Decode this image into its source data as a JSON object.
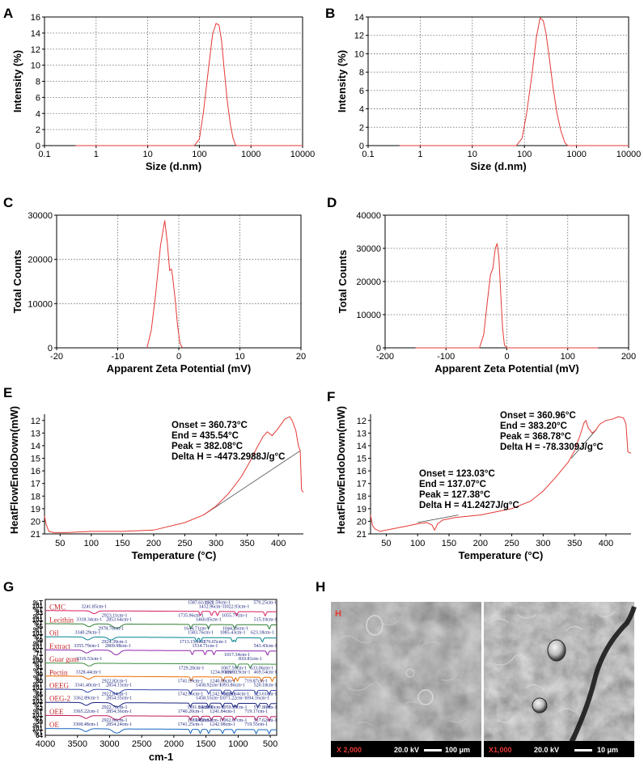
{
  "panel_labels": [
    "A",
    "B",
    "C",
    "D",
    "E",
    "F",
    "G",
    "H"
  ],
  "chart_data": [
    {
      "id": "A",
      "type": "line",
      "xlabel": "Size (d.nm)",
      "ylabel": "Intensity (%)",
      "xscale": "log",
      "xlim": [
        0.1,
        10000
      ],
      "ylim": [
        0,
        16
      ],
      "xticks": [
        "0.1",
        "1",
        "10",
        "100",
        "1000",
        "10000"
      ],
      "yticks": [
        "0",
        "2",
        "4",
        "6",
        "8",
        "10",
        "12",
        "14",
        "16"
      ],
      "grid": true,
      "series": [
        {
          "color": "#e53935",
          "x": [
            0.4,
            80,
            100,
            120,
            150,
            180,
            210,
            240,
            270,
            300,
            350,
            400,
            450,
            500,
            520,
            10000
          ],
          "y": [
            0,
            0,
            0.8,
            4.2,
            9.5,
            13.8,
            15.2,
            15.0,
            13.0,
            9.8,
            5.4,
            2.6,
            0.9,
            0.1,
            0,
            0
          ]
        }
      ]
    },
    {
      "id": "B",
      "type": "line",
      "xlabel": "Size (d.nm)",
      "ylabel": "Intensity (%)",
      "xscale": "log",
      "xlim": [
        0.1,
        10000
      ],
      "ylim": [
        0,
        14
      ],
      "xticks": [
        "0.1",
        "1",
        "10",
        "100",
        "1000",
        "10000"
      ],
      "yticks": [
        "0",
        "2",
        "4",
        "6",
        "8",
        "10",
        "12",
        "14"
      ],
      "grid": true,
      "series": [
        {
          "color": "#e53935",
          "x": [
            0.4,
            70,
            90,
            110,
            140,
            170,
            200,
            230,
            260,
            300,
            350,
            420,
            500,
            600,
            680,
            10000
          ],
          "y": [
            0,
            0,
            0.8,
            3.5,
            7.8,
            11.8,
            13.9,
            13.6,
            12.2,
            9.6,
            6.6,
            3.6,
            1.6,
            0.3,
            0,
            0
          ]
        }
      ]
    },
    {
      "id": "C",
      "type": "line",
      "xlabel": "Apparent Zeta Potential (mV)",
      "ylabel": "Total Counts",
      "xlim": [
        -20,
        20
      ],
      "ylim": [
        0,
        30000
      ],
      "xticks": [
        "-20",
        "-10",
        "0",
        "10",
        "20"
      ],
      "yticks": [
        "0",
        "10000",
        "20000",
        "30000"
      ],
      "grid": true,
      "series": [
        {
          "color": "#e53935",
          "x": [
            -5.2,
            -4.5,
            -3.8,
            -3.0,
            -2.3,
            -1.9,
            -1.5,
            -1.2,
            -1.0,
            -0.6,
            -0.2,
            0.2,
            0.6
          ],
          "y": [
            0,
            4000,
            12000,
            23000,
            28800,
            24000,
            17500,
            17800,
            16000,
            11000,
            5000,
            1000,
            0
          ]
        }
      ]
    },
    {
      "id": "D",
      "type": "line",
      "xlabel": "Apparent Zeta Potential (mV)",
      "ylabel": "Total Counts",
      "xlim": [
        -200,
        200
      ],
      "ylim": [
        0,
        40000
      ],
      "xticks": [
        "-200",
        "-100",
        "0",
        "100",
        "200"
      ],
      "yticks": [
        "0",
        "10000",
        "20000",
        "30000",
        "40000"
      ],
      "grid": true,
      "series": [
        {
          "color": "#e53935",
          "x": [
            -150,
            -45,
            -38,
            -32,
            -27,
            -23,
            -19,
            -16,
            -13,
            -10,
            -7,
            -4,
            0,
            150
          ],
          "y": [
            0,
            0,
            4000,
            14000,
            22000,
            24000,
            30000,
            31500,
            27000,
            16000,
            6000,
            800,
            0,
            0
          ]
        }
      ]
    },
    {
      "id": "E",
      "type": "line",
      "xlabel": "Temperature (°C)",
      "ylabel": "HeatFlowEndoDown(mW)",
      "xlim": [
        25,
        440
      ],
      "ylim": [
        21,
        11.5
      ],
      "y_inverted": true,
      "xticks": [
        "50",
        "100",
        "150",
        "200",
        "250",
        "300",
        "350",
        "400"
      ],
      "yticks": [
        "12",
        "13",
        "14",
        "15",
        "16",
        "17",
        "18",
        "19",
        "20",
        "21"
      ],
      "grid": false,
      "annotation": [
        "Onset = 360.73°C",
        "End = 435.54°C",
        "Peak = 382.08°C",
        "Delta H = -4473.2988J/g°C"
      ],
      "baseline": [
        [
          280,
          19.5
        ],
        [
          435,
          14.4
        ]
      ],
      "series": [
        {
          "color": "#e53935",
          "x": [
            25,
            28,
            32,
            40,
            60,
            100,
            150,
            200,
            250,
            280,
            300,
            320,
            340,
            355,
            365,
            375,
            382,
            390,
            400,
            410,
            418,
            422,
            428,
            432,
            435,
            437,
            440
          ],
          "y": [
            19.6,
            20.3,
            20.8,
            20.9,
            20.9,
            20.8,
            20.8,
            20.7,
            20.1,
            19.5,
            18.8,
            17.8,
            16.5,
            15.2,
            14.2,
            13.3,
            12.9,
            13.2,
            12.6,
            11.9,
            11.7,
            12.0,
            12.8,
            14.0,
            14.4,
            17.5,
            17.7
          ]
        }
      ]
    },
    {
      "id": "F",
      "type": "line",
      "xlabel": "Temperature (°C)",
      "ylabel": "HeatFlowEndoDown(mW)",
      "xlim": [
        25,
        440
      ],
      "ylim": [
        21,
        11.5
      ],
      "y_inverted": true,
      "xticks": [
        "50",
        "100",
        "150",
        "200",
        "250",
        "300",
        "350",
        "400"
      ],
      "yticks": [
        "12",
        "13",
        "14",
        "15",
        "16",
        "17",
        "18",
        "19",
        "20",
        "21"
      ],
      "grid": false,
      "annotation": [
        "Onset = 360.96°C",
        "End = 383.20°C",
        "Peak = 368.78°C",
        "Delta H = -78.3309J/g°C"
      ],
      "annotation2": [
        "Onset = 123.03°C",
        "End = 137.07°C",
        "Peak = 127.38°C",
        "Delta H = 41.2427J/g°C"
      ],
      "baselines": [
        [
          [
            100,
            20.1
          ],
          [
            165,
            19.5
          ]
        ],
        [
          [
            345,
            15.0
          ],
          [
            385,
            12.7
          ]
        ]
      ],
      "series": [
        {
          "color": "#e53935",
          "x": [
            25,
            28,
            32,
            40,
            60,
            80,
            100,
            115,
            123,
            127,
            132,
            140,
            160,
            200,
            250,
            280,
            300,
            320,
            340,
            350,
            360,
            365,
            368,
            372,
            378,
            383,
            390,
            400,
            410,
            420,
            428,
            432,
            435,
            440
          ],
          "y": [
            19.5,
            20.3,
            20.6,
            20.8,
            20.6,
            20.4,
            20.2,
            20.1,
            20.3,
            20.7,
            20.2,
            19.9,
            19.7,
            19.5,
            19.0,
            18.4,
            17.6,
            16.5,
            15.3,
            14.4,
            13.0,
            12.2,
            12.0,
            12.6,
            13.0,
            12.8,
            12.3,
            12.0,
            11.9,
            11.7,
            11.8,
            12.3,
            14.5,
            14.6
          ]
        }
      ]
    },
    {
      "id": "G",
      "type": "line",
      "xlabel": "cm-1",
      "xlim": [
        4000,
        400
      ],
      "x_inverted": true,
      "xticks": [
        "4000",
        "3500",
        "3000",
        "2500",
        "2000",
        "1500",
        "1000",
        "500"
      ],
      "yticks_left": [
        "%T",
        "101",
        "%T",
        "83",
        "%T",
        "101",
        "%T",
        "55",
        "%T",
        "101",
        "%T",
        "59",
        "%T",
        "101",
        "%T",
        "71",
        "%T",
        "100",
        "%T",
        "91",
        "%T",
        "99",
        "%T",
        "80",
        "%T",
        "101",
        "%T",
        "65",
        "%T",
        "102",
        "%T",
        "62",
        "%T",
        "101",
        "%T",
        "59",
        "%T",
        "101",
        "%T",
        "64"
      ],
      "series": [
        {
          "name": "CMC",
          "color": "#d81b60",
          "peaks": [
            "3241.85cm-1",
            "1587.61cm-1",
            "1412.96cm-1",
            "1321.59cm-1",
            "1022.93cm-1",
            "579.25cm-1"
          ]
        },
        {
          "name": "Lecithin",
          "color": "#2e7d32",
          "peaks": [
            "3318.34cm-1",
            "2923.11cm-1",
            "2853.64cm-1",
            "1735.96cm-1",
            "1460.85cm-1",
            "1055.77cm-1",
            "515.10cm-1"
          ]
        },
        {
          "name": "Oil",
          "color": "#00838f",
          "peaks": [
            "3340.29cm-1",
            "2978.70cm-1",
            "1583.76cm-1",
            "1644.71cm-1",
            "1085.43cm-1",
            "1044.26cm-1",
            "623.18cm-1"
          ]
        },
        {
          "name": "Extract",
          "color": "#8e24aa",
          "peaks": [
            "3355.79cm-1",
            "2924.39cm-1",
            "2869.98cm-1",
            "1713.15cm-1",
            "1514.71cm-1",
            "1376.65cm-1",
            "543.43cm-1"
          ]
        },
        {
          "name": "Guar gum",
          "color": "#388e3c",
          "peaks": [
            "3316.53cm-1",
            "1017.34cm-1",
            "810.81cm-1"
          ]
        },
        {
          "name": "Pectin",
          "color": "#ef6c00",
          "peaks": [
            "3328.44cm-1",
            "1729.20cm-1",
            "1234.80cm-1",
            "1067.59cm-1",
            "1010.19cm-1",
            "633.06cm-1",
            "469.54cm-1"
          ]
        },
        {
          "name": "OEEG",
          "color": "#3949ab",
          "peaks": [
            "3341.40cm-1",
            "2922.82cm-1",
            "2854.13cm-1",
            "1741.99cm-1",
            "1458.92cm-1",
            "1240.08cm-1",
            "1093.86cm-1",
            "719.87cm-1",
            "520.18cm-1"
          ]
        },
        {
          "name": "OEG-2",
          "color": "#1a237e",
          "peaks": [
            "3362.89cm-1",
            "2922.84cm-1",
            "2854.35cm-1",
            "1742.06cm-1",
            "1458.55cm-1",
            "1242.90cm-1",
            "1071.22cm-1",
            "1026.64cm-1",
            "694.16cm-1",
            "523.61cm-1"
          ]
        },
        {
          "name": "OEE",
          "color": "#c2185b",
          "peaks": [
            "3365.22cm-1",
            "2922.76cm-1",
            "2854.36cm-1",
            "1591.81cm-1",
            "1740.20cm-1",
            "1415.80cm-1",
            "1241.84cm-1",
            "1059.95cm-1",
            "719.17cm-1",
            "517.88cm-1"
          ]
        },
        {
          "name": "OE",
          "color": "#1565c0",
          "peaks": [
            "3368.48cm-1",
            "2922.66cm-1",
            "2854.24cm-1",
            "1589.92cm-1",
            "1741.25cm-1",
            "1458.82cm-1",
            "1242.98cm-1",
            "1062.07cm-1",
            "719.55cm-1",
            "517.62cm-1"
          ]
        }
      ]
    }
  ],
  "sem": {
    "panel_tag": "H",
    "left": {
      "mag": "X 2,000",
      "kv": "20.0 kV",
      "scale": "100 μm"
    },
    "right": {
      "mag": "X1,000",
      "kv": "20.0 kV",
      "scale": "10 μm"
    }
  }
}
